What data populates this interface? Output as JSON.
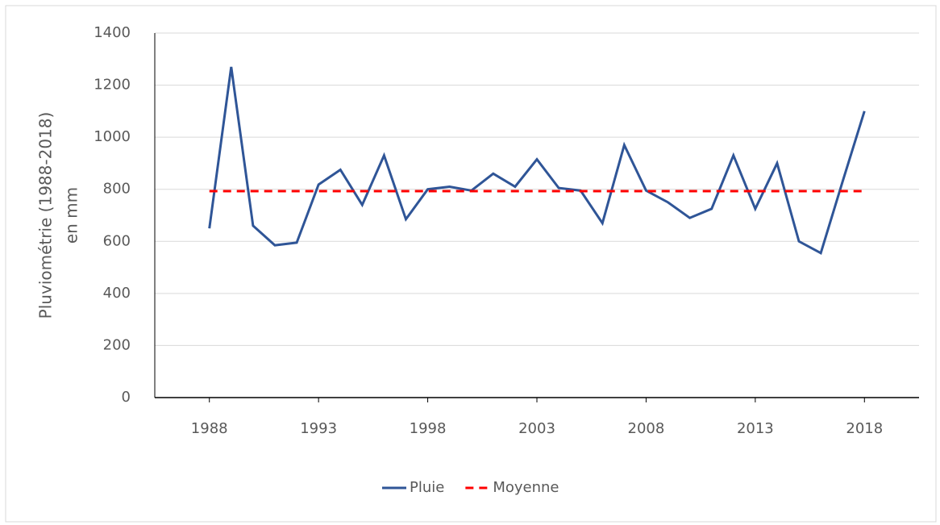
{
  "chart_data": {
    "type": "line",
    "ylabel": [
      "Pluviométrie (1988-2018)",
      "en mm"
    ],
    "x": [
      1988,
      1989,
      1990,
      1991,
      1992,
      1993,
      1994,
      1995,
      1996,
      1997,
      1998,
      1999,
      2000,
      2001,
      2002,
      2003,
      2004,
      2005,
      2006,
      2007,
      2008,
      2009,
      2010,
      2011,
      2012,
      2013,
      2014,
      2015,
      2016,
      2017,
      2018
    ],
    "series": [
      {
        "name": "Pluie",
        "color": "#2f5597",
        "dash": false,
        "values": [
          650,
          1270,
          660,
          585,
          595,
          818,
          875,
          740,
          930,
          685,
          800,
          810,
          795,
          860,
          810,
          915,
          805,
          795,
          670,
          970,
          795,
          750,
          690,
          725,
          930,
          725,
          900,
          600,
          555,
          830,
          1100
        ]
      },
      {
        "name": "Moyenne",
        "color": "#ff0000",
        "dash": true,
        "values": [
          793,
          793,
          793,
          793,
          793,
          793,
          793,
          793,
          793,
          793,
          793,
          793,
          793,
          793,
          793,
          793,
          793,
          793,
          793,
          793,
          793,
          793,
          793,
          793,
          793,
          793,
          793,
          793,
          793,
          793,
          793
        ]
      }
    ],
    "xlim": [
      1985.5,
      2020.5
    ],
    "xticks": [
      1988,
      1993,
      1998,
      2003,
      2008,
      2013,
      2018
    ],
    "ylim": [
      0,
      1400
    ],
    "yticks": [
      0,
      200,
      400,
      600,
      800,
      1000,
      1200,
      1400
    ],
    "grid": true,
    "legend": "bottom"
  }
}
